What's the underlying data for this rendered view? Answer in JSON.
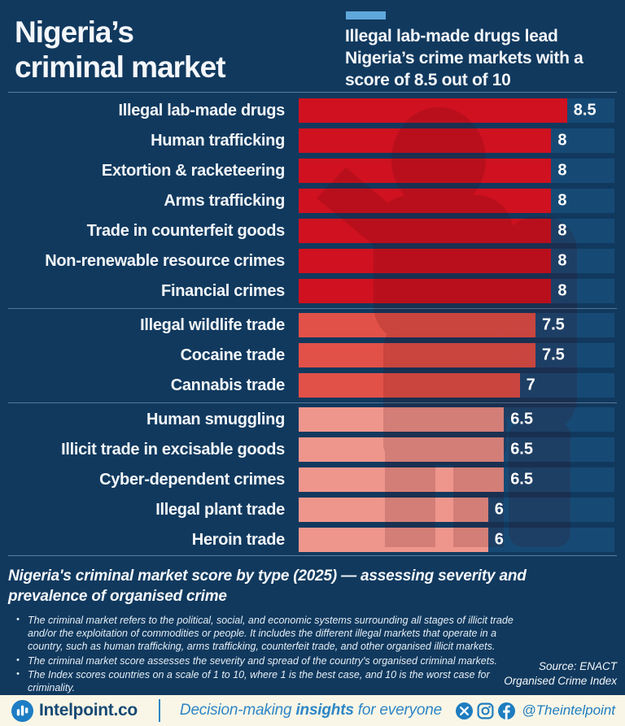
{
  "colors": {
    "background": "#11395E",
    "track": "#164A75",
    "accent": "#5FA8DC",
    "header_text": "#F4F7FA",
    "footer_bg": "#FAF6E7",
    "footer_brand": "#174973",
    "footer_blue": "#1E7DC0",
    "footer_tagline": "#2E86C6"
  },
  "header": {
    "title": "Nigeria’s\ncriminal market",
    "subtitle": "Illegal lab-made drugs lead\nNigeria’s crime markets with a\nscore of 8.5 out of 10"
  },
  "chart_data": {
    "type": "bar",
    "orientation": "horizontal",
    "xlim": [
      0,
      10
    ],
    "grid": false,
    "legend": false,
    "title": "Nigeria's criminal market score by type (2025) — assessing severity and prevalence of organised crime",
    "categories": [
      "Illegal lab-made drugs",
      "Human trafficking",
      "Extortion & racketeering",
      "Arms trafficking",
      "Trade in counterfeit goods",
      "Non-renewable resource crimes",
      "Financial crimes",
      "Illegal wildlife trade",
      "Cocaine trade",
      "Cannabis trade",
      "Human smuggling",
      "Illicit trade in excisable goods",
      "Cyber-dependent crimes",
      "Illegal plant trade",
      "Heroin trade"
    ],
    "values": [
      8.5,
      8,
      8,
      8,
      8,
      8,
      8,
      7.5,
      7.5,
      7,
      6.5,
      6.5,
      6.5,
      6,
      6
    ],
    "group_breaks_before_index": [
      7,
      10
    ],
    "color_scale": [
      {
        "gte": 8,
        "color": "#CF1120"
      },
      {
        "gte": 7,
        "color": "#E25148"
      },
      {
        "gte": 0,
        "color": "#EF968C"
      }
    ]
  },
  "footnote": {
    "caption": "Nigeria's criminal market score by type (2025) — assessing severity and\nprevalence of organised crime",
    "bullets": [
      "The criminal market refers to the political, social, and economic systems surrounding all stages of illicit trade and/or the exploitation of commodities or people. It includes the different illegal markets that operate in a country, such as human trafficking, arms trafficking, counterfeit trade, and other organised illicit markets.",
      "The criminal market score assesses the severity and spread of the country's organised criminal markets.",
      "The Index scores countries on a scale of 1 to 10, where 1 is the best case, and 10 is the worst case for criminality."
    ],
    "source": "Source: ENACT\nOrganised Crime Index"
  },
  "footer": {
    "brand": "Intelpoint.co",
    "logo_icon": "bar-chart-icon",
    "tagline": {
      "pre": "Decision-making ",
      "bold": "insights",
      "post": " for everyone"
    },
    "social_icons": [
      "x-icon",
      "instagram-icon",
      "facebook-icon"
    ],
    "handle": "@Theintelpoint"
  }
}
